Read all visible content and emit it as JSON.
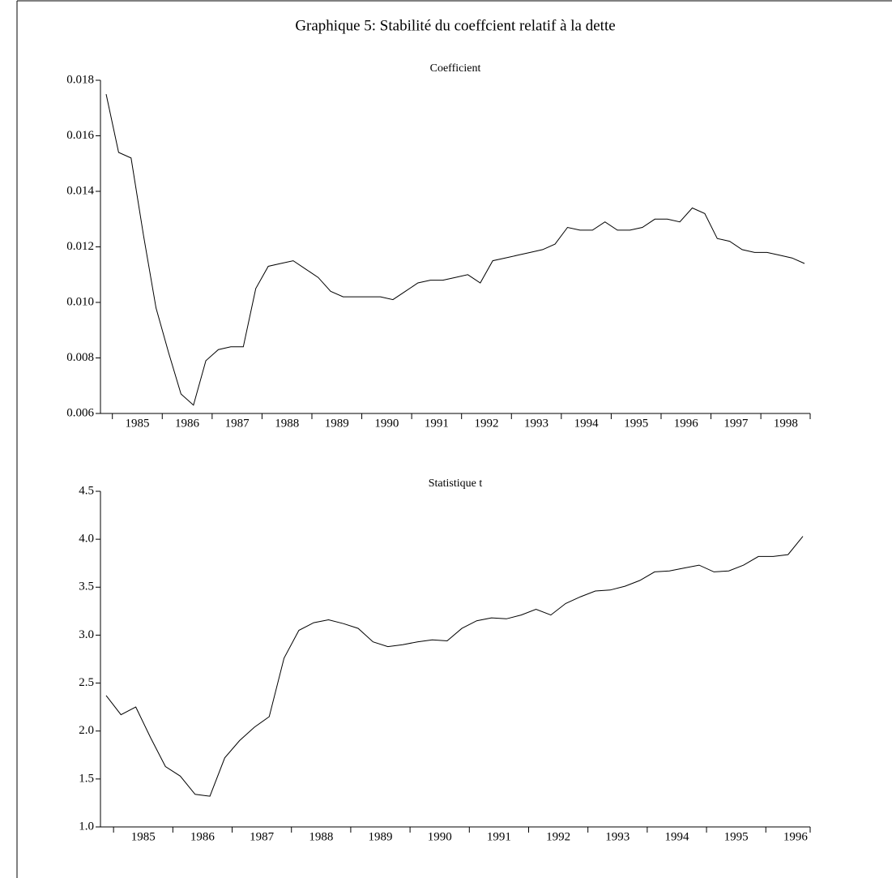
{
  "title": "Graphique 5: Stabilité du coeffcient relatif à la dette",
  "chart_data": [
    {
      "type": "line",
      "title": "Coefficient",
      "color": "#000000",
      "categories": [
        null,
        "1985",
        null,
        null,
        null,
        "1986",
        null,
        null,
        null,
        "1987",
        null,
        null,
        null,
        "1988",
        null,
        null,
        null,
        "1989",
        null,
        null,
        null,
        "1990",
        null,
        null,
        null,
        "1991",
        null,
        null,
        null,
        "1992",
        null,
        null,
        null,
        "1993",
        null,
        null,
        null,
        "1994",
        null,
        null,
        null,
        "1995",
        null,
        null,
        null,
        "1996",
        null,
        null,
        null,
        "1997",
        null,
        null,
        null,
        "1998",
        null,
        null,
        null
      ],
      "values": [
        0.0175,
        0.0154,
        0.0152,
        0.0124,
        0.0098,
        0.0082,
        0.0067,
        0.0063,
        0.0079,
        0.0083,
        0.0084,
        0.0084,
        0.0105,
        0.0113,
        0.0114,
        0.0115,
        0.0112,
        0.0109,
        0.0104,
        0.0102,
        0.0102,
        0.0102,
        0.0102,
        0.0101,
        0.0104,
        0.0107,
        0.0108,
        0.0108,
        0.0109,
        0.011,
        0.0107,
        0.0115,
        0.0116,
        0.0117,
        0.0118,
        0.0119,
        0.0121,
        0.0127,
        0.0126,
        0.0126,
        0.0129,
        0.0126,
        0.0126,
        0.0127,
        0.013,
        0.013,
        0.0129,
        0.0134,
        0.0132,
        0.0123,
        0.0122,
        0.0119,
        0.0118,
        0.0118,
        0.0117,
        0.0116,
        0.0114
      ],
      "ylim": [
        0.006,
        0.018
      ],
      "yticks": [
        0.006,
        0.008,
        {
          "value": 0.01,
          "label": "0.010"
        },
        0.012,
        0.014,
        0.016,
        0.018
      ]
    },
    {
      "type": "line",
      "title": "Statistique t",
      "color": "#000000",
      "categories": [
        null,
        "1985",
        null,
        null,
        null,
        "1986",
        null,
        null,
        null,
        "1987",
        null,
        null,
        null,
        "1988",
        null,
        null,
        null,
        "1989",
        null,
        null,
        null,
        "1990",
        null,
        null,
        null,
        "1991",
        null,
        null,
        null,
        "1992",
        null,
        null,
        null,
        "1993",
        null,
        null,
        null,
        "1994",
        null,
        null,
        null,
        "1995",
        null,
        null,
        null,
        "1996",
        null,
        null
      ],
      "values": [
        2.37,
        2.17,
        2.25,
        1.93,
        1.63,
        1.53,
        1.34,
        1.32,
        1.72,
        1.9,
        2.04,
        2.15,
        2.76,
        3.05,
        3.13,
        3.16,
        3.12,
        3.07,
        2.93,
        2.88,
        2.9,
        2.93,
        2.95,
        2.94,
        3.07,
        3.15,
        3.18,
        3.17,
        3.21,
        3.27,
        3.21,
        3.33,
        3.4,
        3.46,
        3.47,
        3.51,
        3.57,
        3.66,
        3.67,
        3.7,
        3.73,
        3.66,
        3.67,
        3.73,
        3.82,
        3.82,
        3.84,
        4.03
      ],
      "ylim": [
        1,
        4.5
      ],
      "yticks": [
        {
          "value": 1,
          "label": "1.0"
        },
        1.5,
        {
          "value": 2,
          "label": "2.0"
        },
        2.5,
        {
          "value": 3,
          "label": "3.0"
        },
        3.5,
        {
          "value": 4,
          "label": "4.0"
        },
        4.5
      ]
    }
  ]
}
